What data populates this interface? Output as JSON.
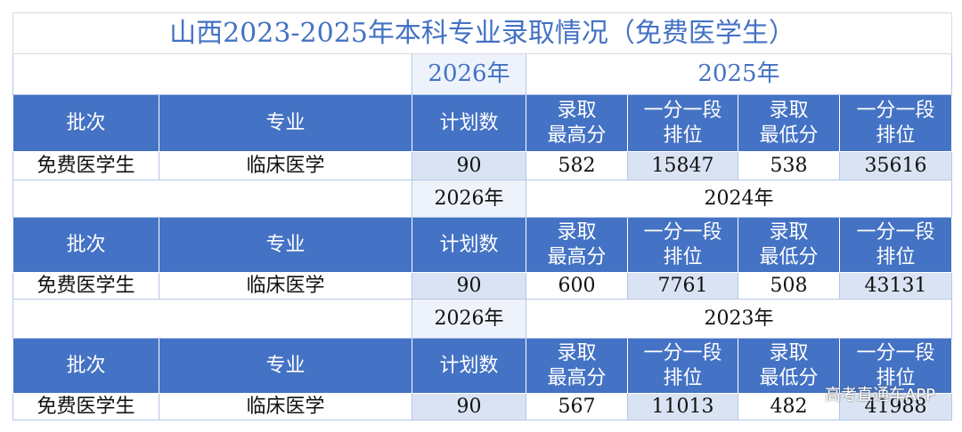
{
  "title": "山西2023-2025年本科专业录取情况（免费医学生）",
  "blocks": [
    {
      "plan_year": "2026年",
      "year": "2025年",
      "headers": [
        [
          "批次"
        ],
        [
          "专业"
        ],
        [
          "计划数"
        ],
        [
          "录取",
          "最高分"
        ],
        [
          "一分一段",
          "排位"
        ],
        [
          "录取",
          "最低分"
        ],
        [
          "一分一段",
          "排位"
        ]
      ],
      "row": [
        "免费医学生",
        "临床医学",
        "90",
        "582",
        "15847",
        "538",
        "35616"
      ]
    },
    {
      "plan_year": "2026年",
      "year": "2024年",
      "headers": [
        [
          "批次"
        ],
        [
          "专业"
        ],
        [
          "计划数"
        ],
        [
          "录取",
          "最高分"
        ],
        [
          "一分一段",
          "排位"
        ],
        [
          "录取",
          "最低分"
        ],
        [
          "一分一段",
          "排位"
        ]
      ],
      "row": [
        "免费医学生",
        "临床医学",
        "90",
        "600",
        "7761",
        "508",
        "43131"
      ]
    },
    {
      "plan_year": "2026年",
      "year": "2023年",
      "headers": [
        [
          "批次"
        ],
        [
          "专业"
        ],
        [
          "计划数"
        ],
        [
          "录取",
          "最高分"
        ],
        [
          "一分一段",
          "排位"
        ],
        [
          "录取",
          "最低分"
        ],
        [
          "一分一段",
          "排位"
        ]
      ],
      "row": [
        "免费医学生",
        "临床医学",
        "90",
        "567",
        "11013",
        "482",
        "41988"
      ]
    }
  ],
  "watermark": "高考直通车APP"
}
